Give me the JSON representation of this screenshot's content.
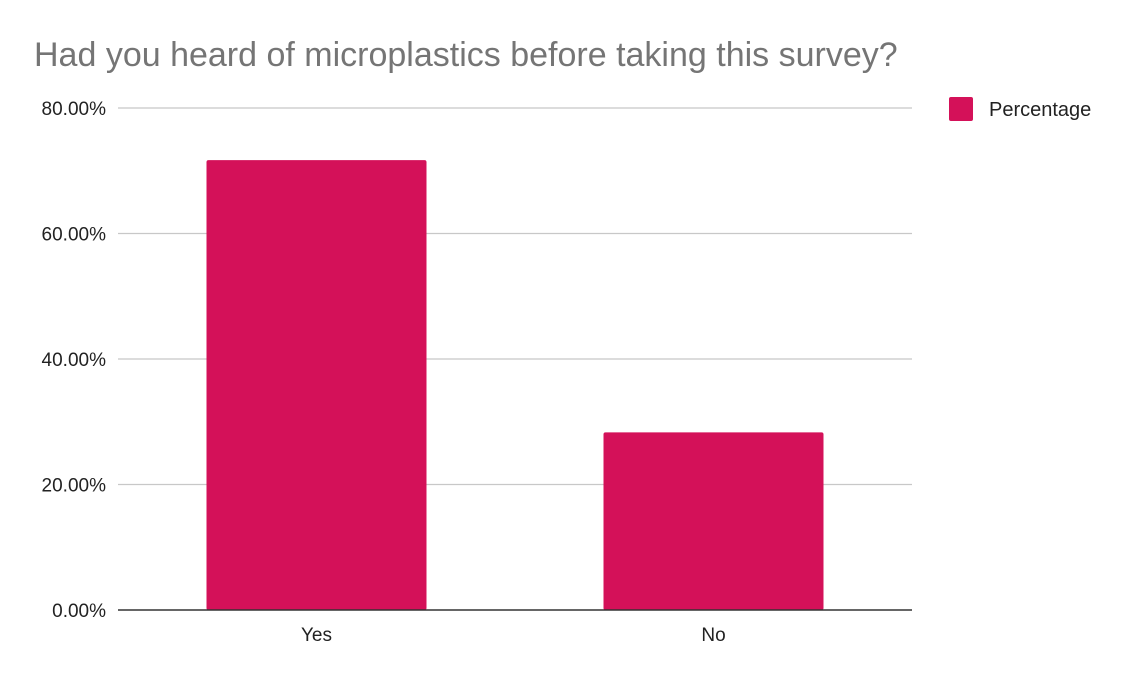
{
  "chart_data": {
    "type": "bar",
    "title": "Had you heard of microplastics before taking this survey?",
    "xlabel": "",
    "ylabel": "",
    "categories": [
      "Yes",
      "No"
    ],
    "series": [
      {
        "name": "Percentage",
        "values": [
          71.7,
          28.3
        ],
        "color": "#d41159"
      }
    ],
    "ylim": [
      0,
      80
    ],
    "yticks": [
      0,
      20,
      40,
      60,
      80
    ],
    "ytick_labels": [
      "0.00%",
      "20.00%",
      "40.00%",
      "60.00%",
      "80.00%"
    ],
    "grid": true,
    "legend_position": "top-right"
  }
}
